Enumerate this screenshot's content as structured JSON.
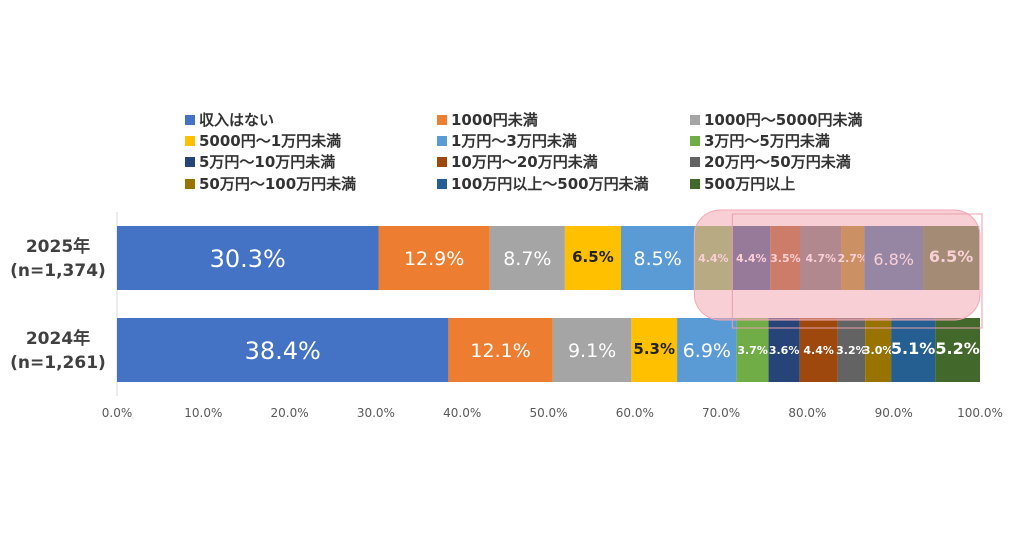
{
  "chart_data": {
    "type": "bar",
    "orientation": "horizontal",
    "stacked": "percent",
    "rows": [
      {
        "label": "2025年",
        "n": "(n=1,374)"
      },
      {
        "label": "2024年",
        "n": "(n=1,261)"
      }
    ],
    "series": [
      {
        "name": "収入はない",
        "color": "#4472C4",
        "values": [
          30.3,
          38.4
        ],
        "labels": [
          "30.3%",
          "38.4%"
        ]
      },
      {
        "name": "1000円未満",
        "color": "#ED7D31",
        "values": [
          12.9,
          12.1
        ],
        "labels": [
          "12.9%",
          "12.1%"
        ]
      },
      {
        "name": "1000円～5000円未満",
        "color": "#A5A5A5",
        "values": [
          8.7,
          9.1
        ],
        "labels": [
          "8.7%",
          "9.1%"
        ]
      },
      {
        "name": "5000円～1万円未満",
        "color": "#FFC000",
        "values": [
          6.5,
          5.3
        ],
        "labels": [
          "6.5%",
          "5.3%"
        ]
      },
      {
        "name": "1万円～3万円未満",
        "color": "#5B9BD5",
        "values": [
          8.5,
          6.9
        ],
        "labels": [
          "8.5%",
          "6.9%"
        ]
      },
      {
        "name": "3万円～5万円未満",
        "color": "#70AD47",
        "values": [
          4.4,
          3.7
        ],
        "labels": [
          "4.4%",
          "3.7%"
        ]
      },
      {
        "name": "5万円～10万円未満",
        "color": "#264478",
        "values": [
          4.4,
          3.6
        ],
        "labels": [
          "4.4%",
          "3.6%"
        ]
      },
      {
        "name": "10万円～20万円未満",
        "color": "#9E480E",
        "values": [
          3.5,
          4.4
        ],
        "labels": [
          "3.5%",
          "4.4%"
        ]
      },
      {
        "name": "20万円～50万円未満",
        "color": "#636363",
        "values": [
          4.7,
          3.2
        ],
        "labels": [
          "4.7%",
          "3.2%"
        ]
      },
      {
        "name": "50万円～100万円未満",
        "color": "#997300",
        "values": [
          2.7,
          3.0
        ],
        "labels": [
          "2.7%",
          "3.0%"
        ]
      },
      {
        "name": "100万円以上～500万円未満",
        "color": "#255E91",
        "values": [
          6.8,
          5.1
        ],
        "labels": [
          "6.8%",
          "5.1%"
        ]
      },
      {
        "name": "500万円以上",
        "color": "#43682B",
        "values": [
          6.5,
          5.2
        ],
        "labels": [
          "6.5%",
          "5.2%"
        ]
      }
    ],
    "xlim": [
      0,
      100
    ],
    "ticks": [
      "0.0%",
      "10.0%",
      "20.0%",
      "30.0%",
      "40.0%",
      "50.0%",
      "60.0%",
      "70.0%",
      "80.0%",
      "90.0%",
      "100.0%"
    ],
    "legend_position": "top",
    "highlight": {
      "row": 0,
      "from_series": 6,
      "to_series": 11,
      "color": "#F4A7B4"
    }
  }
}
